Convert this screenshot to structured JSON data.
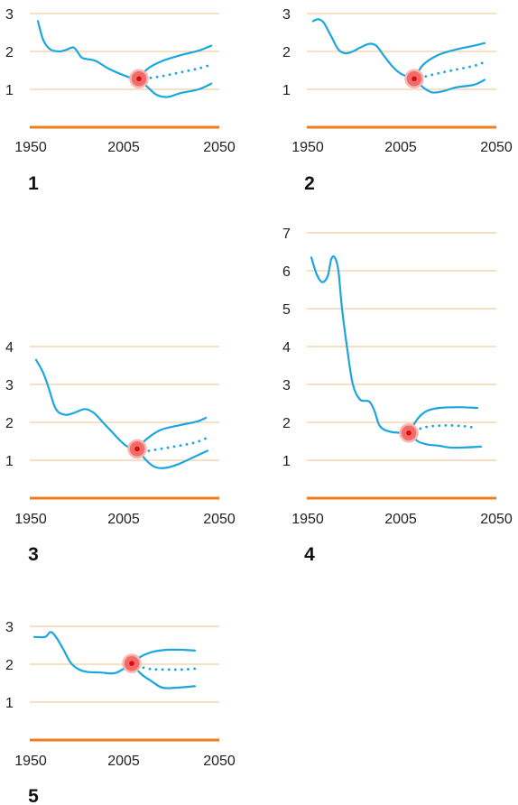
{
  "colors": {
    "grid": "#f2c08a",
    "axis": "#ef7d1a",
    "curve": "#1aa7df",
    "marker_fill": "#f26b6b",
    "marker_ring": "#fbb7ae",
    "marker_dot": "#d70d0d",
    "text": "#222222"
  },
  "chart_data": [
    {
      "type": "line",
      "panel_label": "1",
      "xlim": [
        1950,
        2050
      ],
      "x_ticks": [
        "1950",
        "2005",
        "2050"
      ],
      "ylim": [
        0,
        3
      ],
      "y_ticks": [
        "1",
        "2",
        "3"
      ],
      "grid": true,
      "marker": {
        "x": 2007,
        "y": 1.28
      },
      "series": [
        {
          "style": "solid",
          "points": [
            [
              1951,
              2.8
            ],
            [
              1954,
              2.3
            ],
            [
              1958,
              2.05
            ],
            [
              1963,
              2.0
            ],
            [
              1967,
              2.05
            ],
            [
              1971,
              2.1
            ],
            [
              1975,
              1.85
            ],
            [
              1978,
              1.8
            ],
            [
              1983,
              1.75
            ],
            [
              1990,
              1.55
            ],
            [
              1997,
              1.4
            ],
            [
              2003,
              1.3
            ],
            [
              2007,
              1.28
            ]
          ]
        },
        {
          "style": "solid",
          "points": [
            [
              2007,
              1.28
            ],
            [
              2012,
              1.55
            ],
            [
              2020,
              1.75
            ],
            [
              2030,
              1.9
            ],
            [
              2040,
              2.02
            ],
            [
              2047,
              2.15
            ]
          ]
        },
        {
          "style": "solid",
          "points": [
            [
              2007,
              1.28
            ],
            [
              2012,
              1.05
            ],
            [
              2017,
              0.85
            ],
            [
              2023,
              0.8
            ],
            [
              2030,
              0.9
            ],
            [
              2040,
              1.0
            ],
            [
              2047,
              1.15
            ]
          ]
        },
        {
          "style": "dotted",
          "points": [
            [
              2010,
              1.28
            ],
            [
              2020,
              1.35
            ],
            [
              2030,
              1.45
            ],
            [
              2040,
              1.55
            ],
            [
              2047,
              1.65
            ]
          ]
        }
      ]
    },
    {
      "type": "line",
      "panel_label": "2",
      "xlim": [
        1950,
        2050
      ],
      "x_ticks": [
        "1950",
        "2005",
        "2050"
      ],
      "ylim": [
        0,
        3
      ],
      "y_ticks": [
        "1",
        "2",
        "3"
      ],
      "grid": true,
      "marker": {
        "x": 2007,
        "y": 1.28
      },
      "series": [
        {
          "style": "solid",
          "points": [
            [
              1951,
              2.8
            ],
            [
              1954,
              2.85
            ],
            [
              1957,
              2.75
            ],
            [
              1961,
              2.4
            ],
            [
              1965,
              2.05
            ],
            [
              1969,
              1.95
            ],
            [
              1973,
              2.0
            ],
            [
              1977,
              2.1
            ],
            [
              1982,
              2.2
            ],
            [
              1986,
              2.15
            ],
            [
              1990,
              1.9
            ],
            [
              1995,
              1.6
            ],
            [
              2000,
              1.4
            ],
            [
              2007,
              1.28
            ]
          ]
        },
        {
          "style": "solid",
          "points": [
            [
              2007,
              1.28
            ],
            [
              2012,
              1.65
            ],
            [
              2020,
              1.9
            ],
            [
              2030,
              2.05
            ],
            [
              2040,
              2.15
            ],
            [
              2046,
              2.22
            ]
          ]
        },
        {
          "style": "solid",
          "points": [
            [
              2007,
              1.28
            ],
            [
              2012,
              1.05
            ],
            [
              2017,
              0.92
            ],
            [
              2023,
              0.95
            ],
            [
              2030,
              1.05
            ],
            [
              2040,
              1.12
            ],
            [
              2046,
              1.25
            ]
          ]
        },
        {
          "style": "dotted",
          "points": [
            [
              2010,
              1.3
            ],
            [
              2020,
              1.42
            ],
            [
              2030,
              1.52
            ],
            [
              2040,
              1.62
            ],
            [
              2046,
              1.72
            ]
          ]
        }
      ]
    },
    {
      "type": "line",
      "panel_label": "3",
      "xlim": [
        1950,
        2050
      ],
      "x_ticks": [
        "1950",
        "2005",
        "2050"
      ],
      "ylim": [
        0,
        4
      ],
      "y_ticks": [
        "1",
        "2",
        "3",
        "4"
      ],
      "grid": true,
      "marker": {
        "x": 2007,
        "y": 1.3
      },
      "series": [
        {
          "style": "solid",
          "points": [
            [
              1951,
              3.65
            ],
            [
              1955,
              3.3
            ],
            [
              1958,
              2.9
            ],
            [
              1962,
              2.35
            ],
            [
              1967,
              2.2
            ],
            [
              1972,
              2.25
            ],
            [
              1978,
              2.35
            ],
            [
              1983,
              2.25
            ],
            [
              1988,
              2.0
            ],
            [
              1993,
              1.75
            ],
            [
              1998,
              1.5
            ],
            [
              2002,
              1.35
            ],
            [
              2007,
              1.3
            ]
          ]
        },
        {
          "style": "solid",
          "points": [
            [
              2007,
              1.3
            ],
            [
              2012,
              1.55
            ],
            [
              2020,
              1.8
            ],
            [
              2030,
              1.92
            ],
            [
              2040,
              2.02
            ],
            [
              2045,
              2.12
            ]
          ]
        },
        {
          "style": "solid",
          "points": [
            [
              2007,
              1.3
            ],
            [
              2012,
              1.0
            ],
            [
              2017,
              0.82
            ],
            [
              2023,
              0.8
            ],
            [
              2030,
              0.9
            ],
            [
              2040,
              1.12
            ],
            [
              2046,
              1.25
            ]
          ]
        },
        {
          "style": "dotted",
          "points": [
            [
              2010,
              1.22
            ],
            [
              2020,
              1.3
            ],
            [
              2030,
              1.38
            ],
            [
              2040,
              1.48
            ],
            [
              2046,
              1.6
            ]
          ]
        }
      ]
    },
    {
      "type": "line",
      "panel_label": "4",
      "xlim": [
        1950,
        2050
      ],
      "x_ticks": [
        "1950",
        "2005",
        "2050"
      ],
      "ylim": [
        0,
        7
      ],
      "y_ticks": [
        "1",
        "2",
        "3",
        "4",
        "5",
        "6",
        "7"
      ],
      "grid": true,
      "marker": {
        "x": 2005,
        "y": 1.72
      },
      "series": [
        {
          "style": "solid",
          "points": [
            [
              1951,
              6.35
            ],
            [
              1954,
              5.9
            ],
            [
              1957,
              5.7
            ],
            [
              1960,
              5.85
            ],
            [
              1962,
              6.3
            ],
            [
              1964,
              6.35
            ],
            [
              1966,
              6.0
            ],
            [
              1968,
              5.0
            ],
            [
              1971,
              3.9
            ],
            [
              1974,
              3.0
            ],
            [
              1978,
              2.6
            ],
            [
              1983,
              2.55
            ],
            [
              1986,
              2.3
            ],
            [
              1989,
              1.9
            ],
            [
              1995,
              1.75
            ],
            [
              2005,
              1.72
            ]
          ]
        },
        {
          "style": "solid",
          "points": [
            [
              2005,
              1.72
            ],
            [
              2010,
              2.1
            ],
            [
              2015,
              2.3
            ],
            [
              2022,
              2.38
            ],
            [
              2032,
              2.4
            ],
            [
              2043,
              2.38
            ]
          ]
        },
        {
          "style": "solid",
          "points": [
            [
              2005,
              1.72
            ],
            [
              2010,
              1.5
            ],
            [
              2015,
              1.42
            ],
            [
              2022,
              1.38
            ],
            [
              2030,
              1.33
            ],
            [
              2045,
              1.36
            ]
          ]
        },
        {
          "style": "dotted",
          "points": [
            [
              2008,
              1.78
            ],
            [
              2015,
              1.88
            ],
            [
              2025,
              1.92
            ],
            [
              2035,
              1.9
            ],
            [
              2043,
              1.85
            ]
          ]
        }
      ]
    },
    {
      "type": "line",
      "panel_label": "5",
      "xlim": [
        1950,
        2050
      ],
      "x_ticks": [
        "1950",
        "2005",
        "2050"
      ],
      "ylim": [
        0,
        3
      ],
      "y_ticks": [
        "1",
        "2",
        "3"
      ],
      "grid": true,
      "marker": {
        "x": 2005,
        "y": 2.02
      },
      "series": [
        {
          "style": "solid",
          "points": [
            [
              1951,
              2.72
            ],
            [
              1957,
              2.72
            ],
            [
              1960,
              2.85
            ],
            [
              1963,
              2.72
            ],
            [
              1967,
              2.4
            ],
            [
              1971,
              2.05
            ],
            [
              1975,
              1.88
            ],
            [
              1980,
              1.8
            ],
            [
              1988,
              1.78
            ],
            [
              1996,
              1.77
            ],
            [
              2005,
              2.02
            ]
          ]
        },
        {
          "style": "solid",
          "points": [
            [
              2005,
              2.02
            ],
            [
              2010,
              2.2
            ],
            [
              2017,
              2.33
            ],
            [
              2025,
              2.38
            ],
            [
              2033,
              2.38
            ],
            [
              2040,
              2.36
            ]
          ]
        },
        {
          "style": "solid",
          "points": [
            [
              2005,
              2.02
            ],
            [
              2010,
              1.75
            ],
            [
              2016,
              1.55
            ],
            [
              2022,
              1.38
            ],
            [
              2030,
              1.38
            ],
            [
              2040,
              1.42
            ]
          ]
        },
        {
          "style": "dotted",
          "points": [
            [
              2008,
              1.95
            ],
            [
              2016,
              1.87
            ],
            [
              2025,
              1.86
            ],
            [
              2033,
              1.86
            ],
            [
              2040,
              1.88
            ]
          ]
        }
      ]
    }
  ]
}
